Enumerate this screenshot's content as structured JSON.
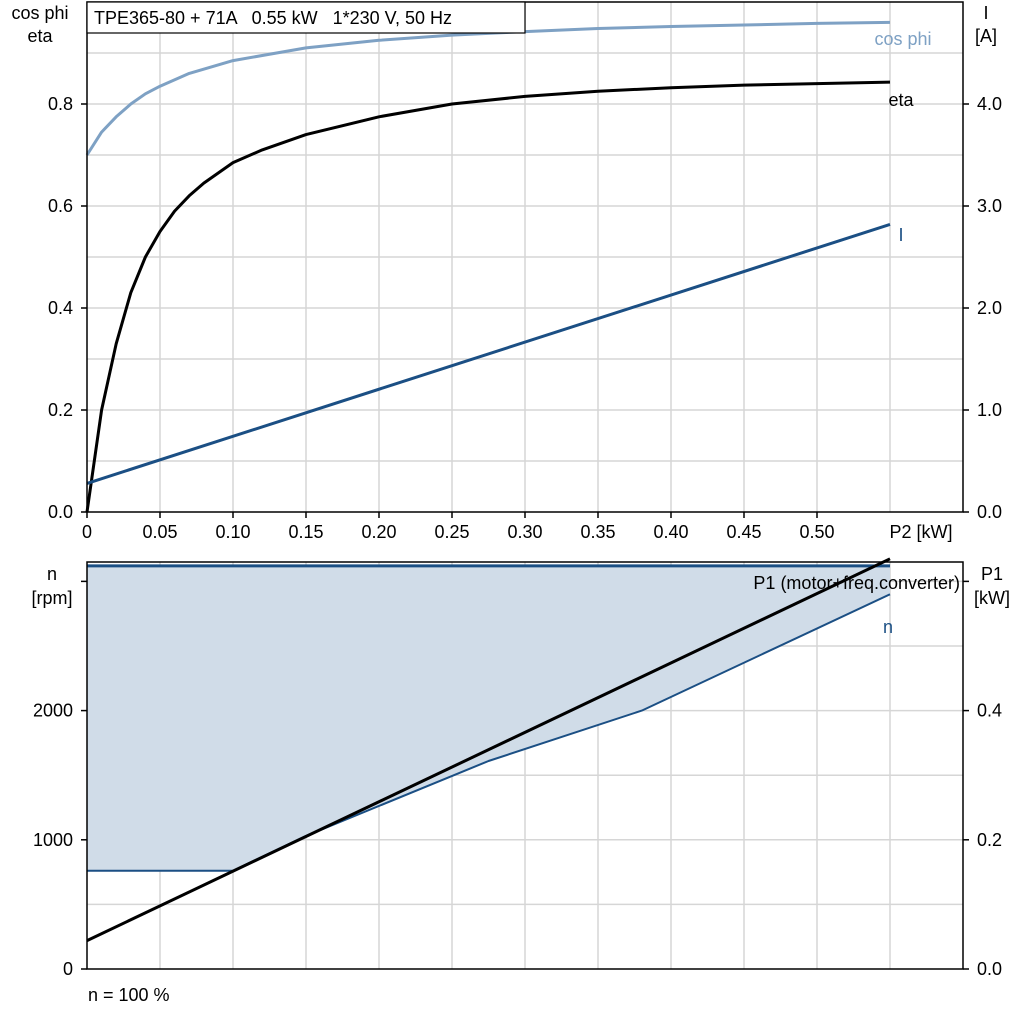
{
  "chart_data": [
    {
      "type": "line",
      "title": "TPE365-80 + 71A   0.55 kW   1*230 V, 50 Hz",
      "xlabel": "P2 [kW]",
      "ylabel_left": [
        "cos phi",
        "eta"
      ],
      "ylabel_right": [
        "I",
        "[A]"
      ],
      "xlim": [
        0,
        0.6
      ],
      "ylim_left": [
        0,
        1.0
      ],
      "ylim_right": [
        0,
        5.0
      ],
      "x_ticks": [
        "0",
        "0.05",
        "0.10",
        "0.15",
        "0.20",
        "0.25",
        "0.30",
        "0.35",
        "0.40",
        "0.45",
        "0.50"
      ],
      "y_ticks_left": [
        "0.0",
        "0.2",
        "0.4",
        "0.6",
        "0.8"
      ],
      "y_ticks_right": [
        "0.0",
        "1.0",
        "2.0",
        "3.0",
        "4.0"
      ],
      "grid": true,
      "series": [
        {
          "name": "cos phi",
          "axis": "left",
          "color": "#7ea1c4",
          "x": [
            0,
            0.01,
            0.02,
            0.03,
            0.04,
            0.05,
            0.07,
            0.1,
            0.15,
            0.2,
            0.25,
            0.3,
            0.35,
            0.4,
            0.45,
            0.5,
            0.55
          ],
          "y": [
            0.7,
            0.745,
            0.775,
            0.8,
            0.82,
            0.835,
            0.86,
            0.885,
            0.91,
            0.925,
            0.935,
            0.942,
            0.948,
            0.952,
            0.955,
            0.958,
            0.96
          ]
        },
        {
          "name": "eta",
          "axis": "left",
          "color": "#000000",
          "x": [
            0,
            0.005,
            0.01,
            0.02,
            0.03,
            0.04,
            0.05,
            0.06,
            0.07,
            0.08,
            0.1,
            0.12,
            0.15,
            0.2,
            0.25,
            0.3,
            0.35,
            0.4,
            0.45,
            0.5,
            0.55
          ],
          "y": [
            0,
            0.1,
            0.2,
            0.33,
            0.43,
            0.5,
            0.55,
            0.59,
            0.62,
            0.645,
            0.685,
            0.71,
            0.74,
            0.775,
            0.8,
            0.815,
            0.825,
            0.832,
            0.837,
            0.84,
            0.843
          ]
        },
        {
          "name": "I",
          "axis": "right",
          "color": "#1b4f84",
          "x": [
            0,
            0.55
          ],
          "y": [
            0.28,
            2.82
          ]
        }
      ]
    },
    {
      "type": "area",
      "xlim": [
        0,
        0.6
      ],
      "ylabel_left": [
        "n",
        "[rpm]"
      ],
      "ylabel_right": [
        "P1",
        "[kW]"
      ],
      "ylim_left": [
        0,
        3150
      ],
      "ylim_right": [
        0,
        0.63
      ],
      "y_ticks_left": [
        "0",
        "1000",
        "2000"
      ],
      "y_ticks_right": [
        "0.0",
        "0.2",
        "0.4"
      ],
      "grid": true,
      "fill_color": "#d0dce8",
      "series": [
        {
          "name": "n",
          "axis": "left",
          "color": "#1b4f84",
          "x": [
            0,
            0.1,
            0.15,
            0.275,
            0.38,
            0.55
          ],
          "y": [
            760,
            760,
            1030,
            1610,
            2000,
            2900
          ]
        },
        {
          "name": "",
          "axis": "left",
          "color": "#1b4f84",
          "x": [
            0,
            0.55
          ],
          "y": [
            3120,
            3120
          ]
        },
        {
          "name": "P1 (motor+freq.converter)",
          "axis": "right",
          "color": "#000000",
          "x": [
            0,
            0.55
          ],
          "y": [
            0.044,
            0.635
          ]
        }
      ],
      "annotation": "n = 100 %"
    }
  ]
}
